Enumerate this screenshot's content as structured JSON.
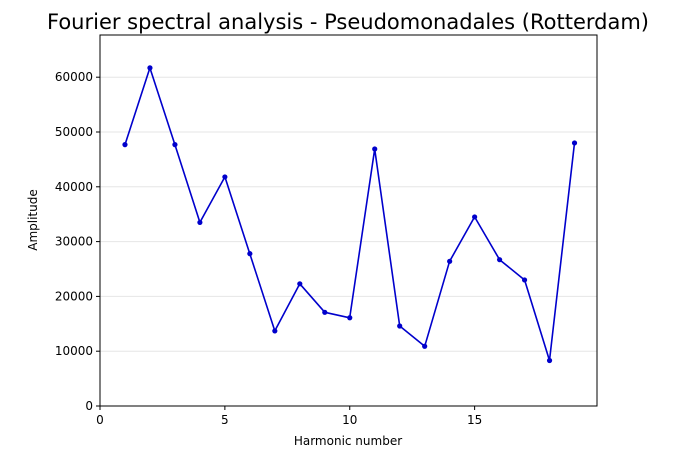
{
  "chart_data": {
    "type": "line",
    "title": "Fourier spectral analysis - Pseudomonadales (Rotterdam)",
    "xlabel": "Harmonic number",
    "ylabel": "Amplitude",
    "xlim": [
      0,
      19.9
    ],
    "ylim": [
      0,
      67700
    ],
    "xticks": [
      0,
      5,
      10,
      15
    ],
    "xtick_labels": [
      "0",
      "5",
      "10",
      "15"
    ],
    "yticks": [
      0,
      10000,
      20000,
      30000,
      40000,
      50000,
      60000
    ],
    "ytick_labels": [
      "0",
      "10000",
      "20000",
      "30000",
      "40000",
      "50000",
      "60000"
    ],
    "grid": "horizontal",
    "legend": "none",
    "series": [
      {
        "color": "#0000cc",
        "marker": "dot",
        "x": [
          1,
          2,
          3,
          4,
          5,
          6,
          7,
          8,
          9,
          10,
          11,
          12,
          13,
          14,
          15,
          16,
          17,
          18,
          19
        ],
        "y": [
          47700,
          61700,
          47700,
          33500,
          41800,
          27800,
          13700,
          22300,
          17100,
          16100,
          46900,
          14600,
          10900,
          26400,
          34500,
          26700,
          23000,
          8300,
          48000
        ]
      }
    ]
  }
}
